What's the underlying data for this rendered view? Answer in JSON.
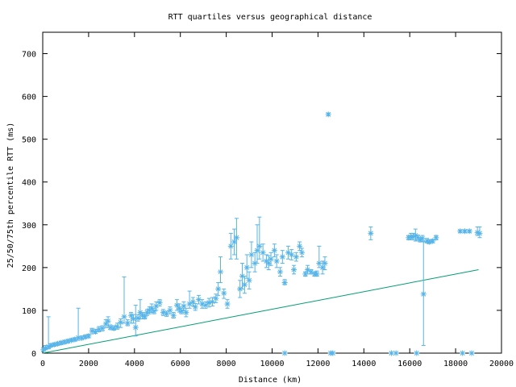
{
  "chart_data": {
    "type": "scatter",
    "title": "RTT quartiles versus geographical distance",
    "xlabel": "Distance (km)",
    "ylabel": "25/50/75th percentile RTT (ms)",
    "xlim": [
      0,
      20000
    ],
    "ylim": [
      0,
      750
    ],
    "xticks": [
      0,
      2000,
      4000,
      6000,
      8000,
      10000,
      12000,
      14000,
      16000,
      18000,
      20000
    ],
    "yticks": [
      0,
      100,
      200,
      300,
      400,
      500,
      600,
      700
    ],
    "grid": false,
    "legend": "none",
    "colors": {
      "quartiles": "#56b4e9",
      "reference_line": "#009e73"
    },
    "series": [
      {
        "kind": "median with 25th-75th percentile error bars",
        "points": [
          [
            30,
            8,
            5,
            12
          ],
          [
            120,
            12,
            8,
            18
          ],
          [
            250,
            15,
            10,
            85
          ],
          [
            350,
            18,
            14,
            22
          ],
          [
            500,
            20,
            16,
            24
          ],
          [
            650,
            22,
            18,
            26
          ],
          [
            800,
            24,
            20,
            28
          ],
          [
            950,
            26,
            22,
            30
          ],
          [
            1100,
            28,
            24,
            32
          ],
          [
            1250,
            30,
            27,
            34
          ],
          [
            1400,
            32,
            28,
            36
          ],
          [
            1550,
            36,
            30,
            105
          ],
          [
            1700,
            35,
            32,
            40
          ],
          [
            1850,
            38,
            34,
            42
          ],
          [
            2000,
            40,
            36,
            44
          ],
          [
            2150,
            52,
            45,
            58
          ],
          [
            2300,
            50,
            46,
            56
          ],
          [
            2450,
            55,
            50,
            62
          ],
          [
            2600,
            58,
            52,
            64
          ],
          [
            2750,
            68,
            60,
            78
          ],
          [
            2850,
            75,
            60,
            85
          ],
          [
            2950,
            60,
            55,
            66
          ],
          [
            3100,
            58,
            54,
            64
          ],
          [
            3250,
            62,
            56,
            70
          ],
          [
            3400,
            72,
            60,
            80
          ],
          [
            3550,
            85,
            70,
            178
          ],
          [
            3700,
            70,
            64,
            78
          ],
          [
            3850,
            88,
            70,
            95
          ],
          [
            3950,
            80,
            70,
            90
          ],
          [
            4050,
            60,
            40,
            112
          ],
          [
            4150,
            82,
            75,
            90
          ],
          [
            4250,
            95,
            80,
            125
          ],
          [
            4350,
            88,
            80,
            95
          ],
          [
            4450,
            85,
            80,
            92
          ],
          [
            4550,
            95,
            88,
            102
          ],
          [
            4650,
            100,
            92,
            108
          ],
          [
            4750,
            105,
            95,
            115
          ],
          [
            4850,
            98,
            92,
            105
          ],
          [
            4950,
            110,
            100,
            120
          ],
          [
            5100,
            118,
            110,
            125
          ],
          [
            5250,
            95,
            88,
            102
          ],
          [
            5400,
            92,
            86,
            98
          ],
          [
            5550,
            100,
            92,
            108
          ],
          [
            5700,
            88,
            82,
            95
          ],
          [
            5850,
            112,
            100,
            125
          ],
          [
            5950,
            105,
            96,
            115
          ],
          [
            6050,
            98,
            92,
            105
          ],
          [
            6150,
            110,
            100,
            120
          ],
          [
            6250,
            95,
            85,
            105
          ],
          [
            6400,
            115,
            105,
            145
          ],
          [
            6550,
            120,
            110,
            130
          ],
          [
            6650,
            108,
            100,
            116
          ],
          [
            6800,
            125,
            115,
            135
          ],
          [
            6950,
            115,
            105,
            125
          ],
          [
            7100,
            112,
            105,
            120
          ],
          [
            7250,
            118,
            108,
            128
          ],
          [
            7400,
            120,
            110,
            130
          ],
          [
            7550,
            128,
            118,
            138
          ],
          [
            7650,
            150,
            135,
            165
          ],
          [
            7750,
            190,
            165,
            225
          ],
          [
            7900,
            140,
            128,
            150
          ],
          [
            8050,
            115,
            105,
            125
          ],
          [
            8200,
            250,
            220,
            280
          ],
          [
            8350,
            260,
            230,
            290
          ],
          [
            8450,
            270,
            220,
            315
          ],
          [
            8600,
            150,
            130,
            170
          ],
          [
            8700,
            180,
            150,
            210
          ],
          [
            8800,
            160,
            140,
            180
          ],
          [
            8900,
            200,
            175,
            230
          ],
          [
            9000,
            170,
            150,
            190
          ],
          [
            9100,
            230,
            200,
            260
          ],
          [
            9250,
            210,
            190,
            235
          ],
          [
            9350,
            240,
            210,
            300
          ],
          [
            9450,
            250,
            220,
            318
          ],
          [
            9600,
            235,
            215,
            255
          ],
          [
            9750,
            215,
            200,
            230
          ],
          [
            9850,
            210,
            195,
            228
          ],
          [
            9950,
            220,
            205,
            235
          ],
          [
            10100,
            240,
            225,
            255
          ],
          [
            10200,
            215,
            200,
            230
          ],
          [
            10350,
            190,
            180,
            200
          ],
          [
            10450,
            225,
            210,
            240
          ],
          [
            10550,
            165,
            160,
            172
          ],
          [
            10700,
            235,
            220,
            250
          ],
          [
            10850,
            230,
            218,
            242
          ],
          [
            10950,
            195,
            185,
            205
          ],
          [
            11050,
            225,
            215,
            235
          ],
          [
            11200,
            250,
            240,
            260
          ],
          [
            11300,
            235,
            225,
            245
          ],
          [
            11450,
            185,
            180,
            190
          ],
          [
            11550,
            195,
            185,
            205
          ],
          [
            11700,
            190,
            185,
            195
          ],
          [
            11850,
            185,
            180,
            190
          ],
          [
            11950,
            185,
            180,
            192
          ],
          [
            12050,
            210,
            200,
            250
          ],
          [
            12200,
            200,
            185,
            215
          ],
          [
            12300,
            210,
            195,
            225
          ],
          [
            12450,
            558,
            555,
            561
          ],
          [
            14300,
            280,
            265,
            295
          ],
          [
            15950,
            270,
            265,
            275
          ],
          [
            16050,
            272,
            265,
            280
          ],
          [
            16150,
            272,
            265,
            280
          ],
          [
            16250,
            275,
            262,
            290
          ],
          [
            16350,
            270,
            264,
            276
          ],
          [
            16450,
            265,
            260,
            270
          ],
          [
            16550,
            268,
            262,
            275
          ],
          [
            16600,
            138,
            18,
            260
          ],
          [
            16750,
            262,
            258,
            268
          ],
          [
            16850,
            260,
            256,
            265
          ],
          [
            17000,
            262,
            258,
            266
          ],
          [
            17150,
            270,
            265,
            275
          ],
          [
            18200,
            285,
            282,
            288
          ],
          [
            18400,
            285,
            282,
            288
          ],
          [
            18600,
            285,
            282,
            288
          ],
          [
            18950,
            282,
            275,
            295
          ],
          [
            19050,
            280,
            270,
            295
          ]
        ]
      },
      {
        "kind": "zero-RTT markers",
        "points": [
          [
            10550,
            0
          ],
          [
            12550,
            0
          ],
          [
            12650,
            0
          ],
          [
            15200,
            0
          ],
          [
            15400,
            0
          ],
          [
            16300,
            0
          ],
          [
            18300,
            0
          ],
          [
            18700,
            0
          ]
        ]
      },
      {
        "kind": "reference line",
        "points": [
          [
            0,
            0
          ],
          [
            19000,
            195
          ]
        ]
      }
    ]
  }
}
